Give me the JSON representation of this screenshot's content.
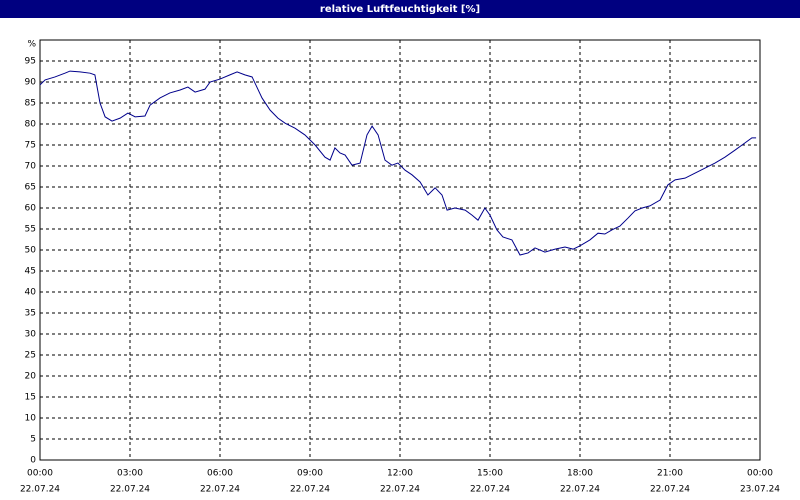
{
  "chart_data": {
    "type": "line",
    "title": "relative Luftfeuchtigkeit [%]",
    "y_label": "%",
    "xlim": [
      0,
      24
    ],
    "ylim": [
      0,
      100
    ],
    "xticks": [
      {
        "value": 0,
        "label": "00:00"
      },
      {
        "value": 3,
        "label": "03:00"
      },
      {
        "value": 6,
        "label": "06:00"
      },
      {
        "value": 9,
        "label": "09:00"
      },
      {
        "value": 12,
        "label": "12:00"
      },
      {
        "value": 15,
        "label": "15:00"
      },
      {
        "value": 18,
        "label": "18:00"
      },
      {
        "value": 21,
        "label": "21:00"
      },
      {
        "value": 24,
        "label": "00:00"
      }
    ],
    "xtick_dates": [
      "22.07.24",
      "22.07.24",
      "22.07.24",
      "22.07.24",
      "22.07.24",
      "22.07.24",
      "22.07.24",
      "22.07.24",
      "23.07.24"
    ],
    "yticks": [
      0,
      5,
      10,
      15,
      20,
      25,
      30,
      35,
      40,
      45,
      50,
      55,
      60,
      65,
      70,
      75,
      80,
      85,
      90,
      95
    ],
    "grid": true,
    "series": [
      {
        "color": "#00008b",
        "x": [
          0,
          0.17,
          0.5,
          0.83,
          1,
          1.33,
          1.67,
          1.83,
          2,
          2.17,
          2.4,
          2.67,
          2.93,
          3.17,
          3.5,
          3.67,
          4,
          4.33,
          4.67,
          4.93,
          5.17,
          5.5,
          5.67,
          6,
          6.33,
          6.57,
          6.83,
          7.07,
          7.4,
          7.67,
          7.93,
          8.17,
          8.5,
          8.83,
          9.17,
          9.5,
          9.67,
          9.83,
          10,
          10.17,
          10.4,
          10.67,
          10.9,
          11.07,
          11.27,
          11.5,
          11.73,
          11.93,
          12.17,
          12.4,
          12.67,
          12.93,
          13.17,
          13.4,
          13.57,
          13.83,
          14.17,
          14.4,
          14.6,
          14.83,
          15,
          15.23,
          15.43,
          15.73,
          16,
          16.27,
          16.5,
          16.83,
          17.17,
          17.5,
          17.77,
          18,
          18.33,
          18.6,
          18.83,
          19.07,
          19.33,
          19.6,
          19.83,
          20.07,
          20.33,
          20.67,
          20.93,
          21.17,
          21.5,
          21.83,
          22.17,
          22.5,
          22.83,
          23.17,
          23.5,
          23.73,
          23.87
        ],
        "values": [
          89.3,
          90.5,
          91.2,
          92.1,
          92.6,
          92.4,
          92.1,
          91.7,
          85,
          81.7,
          80.7,
          81.4,
          82.6,
          81.7,
          81.9,
          84.5,
          86.2,
          87.4,
          88.1,
          88.8,
          87.6,
          88.3,
          90,
          90.7,
          91.7,
          92.4,
          91.7,
          91.2,
          86.2,
          83.3,
          81.4,
          80.2,
          79,
          77.4,
          75,
          72.1,
          71.4,
          74.3,
          73.1,
          72.6,
          70.2,
          70.7,
          77.4,
          79.5,
          77.4,
          71.4,
          70.2,
          70.7,
          69,
          67.9,
          66.2,
          63.1,
          64.8,
          63.1,
          59.5,
          60,
          59.5,
          58.3,
          57.1,
          60,
          58.3,
          54.8,
          53.1,
          52.4,
          48.8,
          49.3,
          50.5,
          49.5,
          50.2,
          50.7,
          50.2,
          51,
          52.4,
          54,
          53.8,
          54.8,
          55.7,
          57.6,
          59.3,
          60,
          60.5,
          61.9,
          65.5,
          66.7,
          67.1,
          68.3,
          69.5,
          70.7,
          72.1,
          73.8,
          75.5,
          76.7,
          76.7
        ]
      }
    ]
  }
}
